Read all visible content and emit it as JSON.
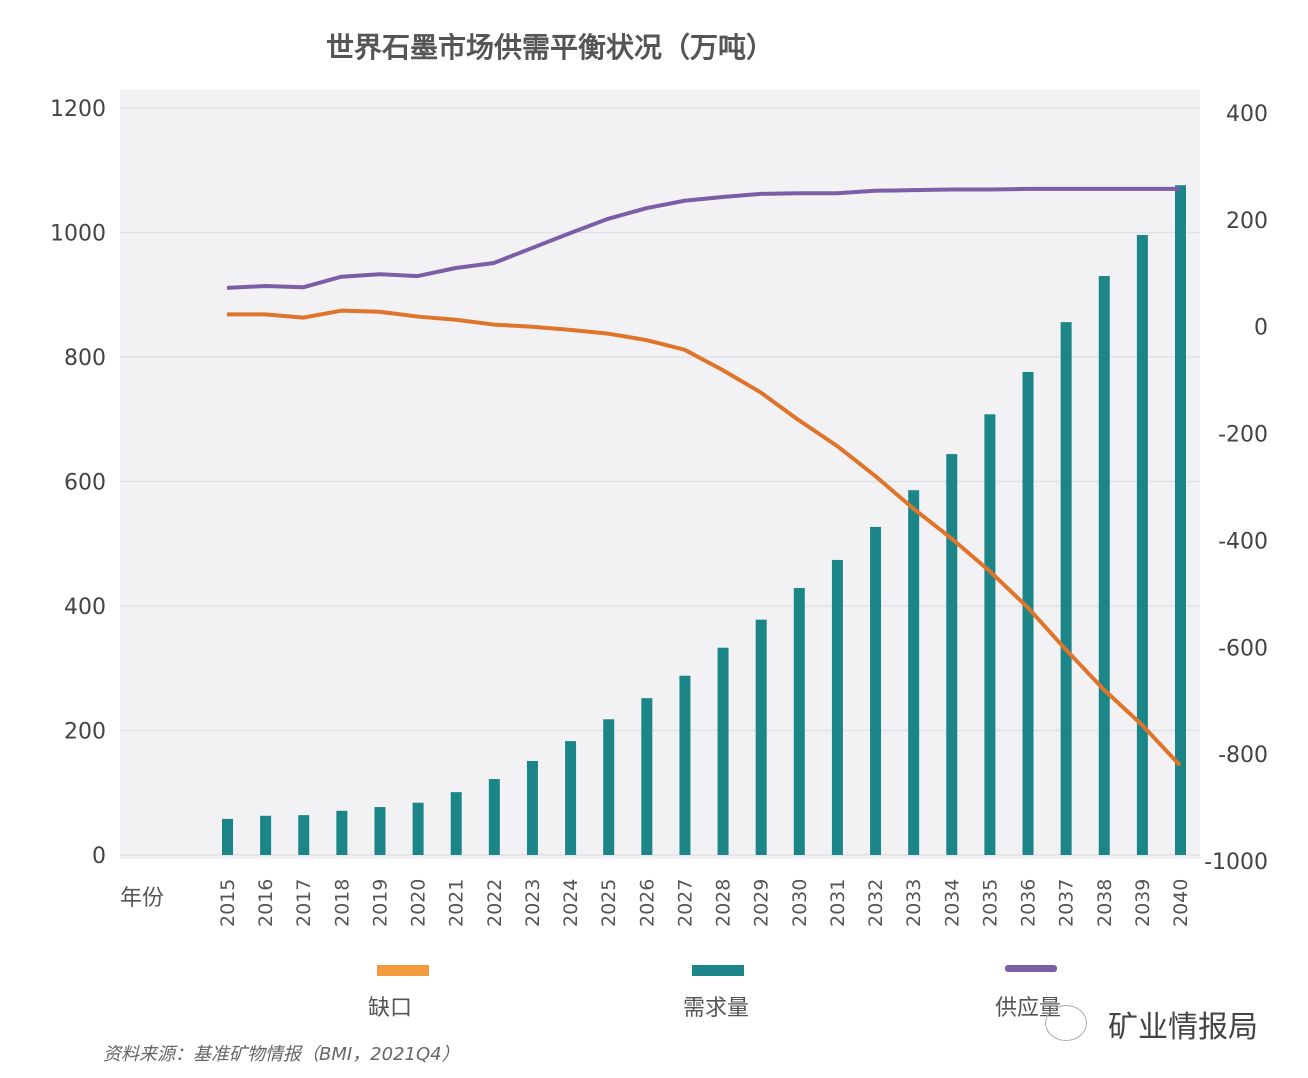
{
  "chart_data": {
    "type": "bar+line",
    "title": "世界石墨市场供需平衡状况（万吨）",
    "xlabel": "年份",
    "categories": [
      "2015",
      "2016",
      "2017",
      "2018",
      "2019",
      "2020",
      "2021",
      "2022",
      "2023",
      "2024",
      "2025",
      "2026",
      "2027",
      "2028",
      "2029",
      "2030",
      "2031",
      "2032",
      "2033",
      "2034",
      "2035",
      "2036",
      "2037",
      "2038",
      "2039",
      "2040"
    ],
    "y_left": {
      "range": [
        0,
        1200
      ],
      "ticks": [
        0,
        200,
        400,
        600,
        800,
        1000,
        1200
      ]
    },
    "y_right": {
      "range": [
        -1000,
        400
      ],
      "ticks": [
        -1000,
        -800,
        -600,
        -400,
        -200,
        0,
        200,
        400
      ]
    },
    "grid": true,
    "legend_position": "bottom",
    "series": [
      {
        "name": "缺口",
        "type": "line",
        "axis": "right",
        "color": "#e0742a",
        "legend_color": "#f39a3d",
        "values": [
          23,
          23,
          17,
          30,
          28,
          19,
          13,
          4,
          0,
          -6,
          -13,
          -25,
          -43,
          -81,
          -123,
          -175,
          -223,
          -279,
          -340,
          -396,
          -457,
          -525,
          -604,
          -679,
          -745,
          -821
        ]
      },
      {
        "name": "需求量",
        "type": "bar",
        "axis": "left",
        "color": "#1b8587",
        "values": [
          58,
          63,
          64,
          71,
          77,
          84,
          101,
          122,
          151,
          183,
          218,
          252,
          288,
          333,
          378,
          429,
          474,
          527,
          586,
          644,
          708,
          776,
          856,
          930,
          996,
          1076
        ]
      },
      {
        "name": "供应量",
        "type": "line",
        "axis": "left",
        "color": "#7b5ea7",
        "values": [
          911,
          914,
          912,
          929,
          933,
          930,
          943,
          951,
          975,
          999,
          1022,
          1039,
          1051,
          1057,
          1062,
          1063,
          1063,
          1067,
          1068,
          1069,
          1069,
          1070,
          1070,
          1070,
          1070,
          1070
        ]
      }
    ]
  },
  "source": "资料来源：基准矿物情报（BMI，2021Q4）",
  "watermark": "矿业情报局"
}
